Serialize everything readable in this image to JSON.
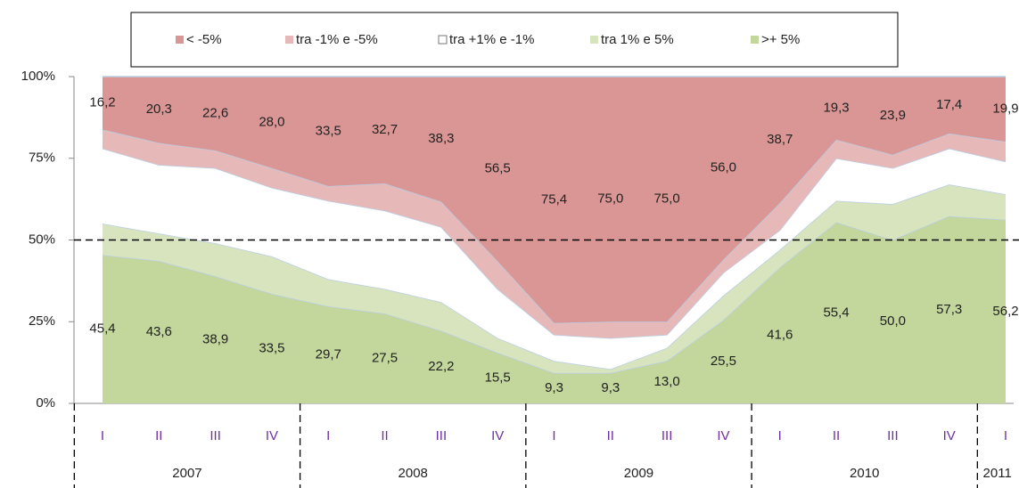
{
  "chart_data": {
    "type": "stacked_area",
    "categories": [
      "I",
      "II",
      "III",
      "IV",
      "I",
      "II",
      "III",
      "IV",
      "I",
      "II",
      "III",
      "IV",
      "I",
      "II",
      "III",
      "IV",
      "I"
    ],
    "group_labels": [
      "2007",
      "2008",
      "2009",
      "2010",
      "2011"
    ],
    "group_sizes": [
      4,
      4,
      4,
      4,
      1
    ],
    "ylim": [
      0,
      100
    ],
    "yticks": [
      {
        "value": 0,
        "label": "0%"
      },
      {
        "value": 25,
        "label": "25%"
      },
      {
        "value": 50,
        "label": "50%"
      },
      {
        "value": 75,
        "label": "75%"
      },
      {
        "value": 100,
        "label": "100%"
      }
    ],
    "dashed_line": 50,
    "series": [
      {
        "name": ">+ 5%",
        "color": "#c3d69b",
        "values": [
          45.4,
          43.6,
          38.9,
          33.5,
          29.7,
          27.5,
          22.2,
          15.5,
          9.3,
          9.3,
          13.0,
          25.5,
          41.6,
          55.4,
          50.0,
          57.3,
          56.2
        ],
        "value_labels": [
          "45,4",
          "43,6",
          "38,9",
          "33,5",
          "29,7",
          "27,5",
          "22,2",
          "15,5",
          "9,3",
          "9,3",
          "13,0",
          "25,5",
          "41,6",
          "55,4",
          "50,0",
          "57,3",
          "56,2"
        ]
      },
      {
        "name": "tra 1% e 5%",
        "color": "#d7e4bd",
        "values": [
          9.6,
          8.4,
          10.1,
          11.5,
          8.3,
          7.5,
          8.8,
          4.5,
          3.7,
          1.2,
          4.0,
          7.5,
          5.4,
          6.6,
          11.0,
          9.7,
          7.8
        ]
      },
      {
        "name": "tra +1% e -1%",
        "color": "#ffffff",
        "values": [
          23,
          21,
          23,
          21,
          24,
          24,
          23,
          15,
          8,
          9.5,
          4,
          7,
          6,
          13,
          11,
          11,
          10
        ]
      },
      {
        "name": "tra -1% e -5%",
        "color": "#e6b9b8",
        "values": [
          5.8,
          6.7,
          5.4,
          6,
          4.5,
          8.3,
          7.7,
          8.5,
          3.6,
          5,
          4,
          4,
          8.3,
          5.7,
          4.1,
          4.6,
          6.1
        ]
      },
      {
        "name": "< -5%",
        "color": "#d99694",
        "values": [
          16.2,
          20.3,
          22.6,
          28.0,
          33.5,
          32.7,
          38.3,
          56.5,
          75.4,
          75.0,
          75.0,
          56.0,
          38.7,
          19.3,
          23.9,
          17.4,
          19.9
        ],
        "value_labels": [
          "16,2",
          "20,3",
          "22,6",
          "28,0",
          "33,5",
          "32,7",
          "38,3",
          "56,5",
          "75,4",
          "75,0",
          "75,0",
          "56,0",
          "38,7",
          "19,3",
          "23,9",
          "17,4",
          "19,9"
        ]
      }
    ]
  }
}
